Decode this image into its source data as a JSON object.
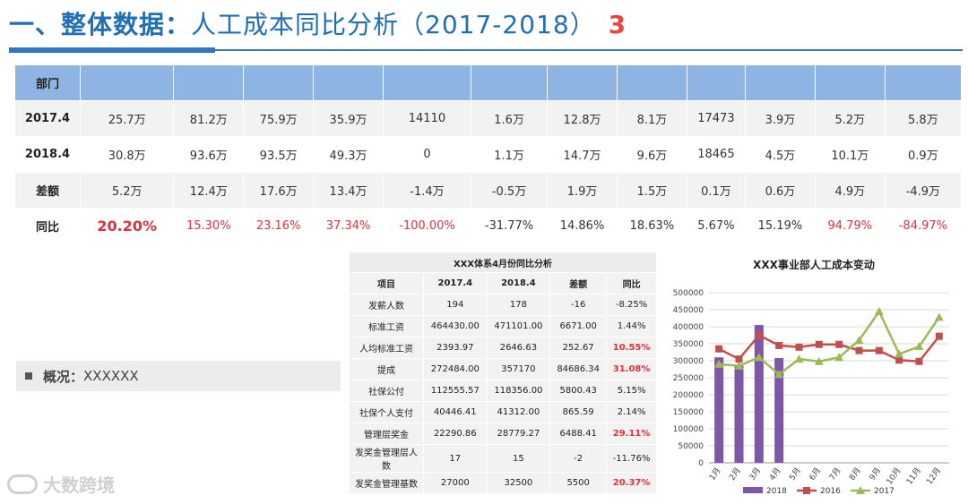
{
  "header": {
    "title_prefix": "一、整体数据：",
    "title_main": "人工成本同比分析（2017-2018）",
    "page_number": "3"
  },
  "main_table": {
    "header_label": "部门",
    "rows": [
      {
        "label": "2017.4",
        "values": [
          "25.7万",
          "81.2万",
          "75.9万",
          "35.9万",
          "14110",
          "1.6万",
          "12.8万",
          "8.1万",
          "17473",
          "3.9万",
          "5.2万",
          "5.8万"
        ]
      },
      {
        "label": "2018.4",
        "values": [
          "30.8万",
          "93.6万",
          "93.5万",
          "49.3万",
          "0",
          "1.1万",
          "14.7万",
          "9.6万",
          "18465",
          "4.5万",
          "10.1万",
          "0.9万"
        ]
      },
      {
        "label": "差额",
        "values": [
          "5.2万",
          "12.4万",
          "17.6万",
          "13.4万",
          "-1.4万",
          "-0.5万",
          "1.9万",
          "1.5万",
          "0.1万",
          "0.6万",
          "4.9万",
          "-4.9万"
        ]
      },
      {
        "label": "同比",
        "values": [
          "20.20%",
          "15.30%",
          "23.16%",
          "37.34%",
          "-100.00%",
          "-31.77%",
          "14.86%",
          "18.63%",
          "5.67%",
          "15.19%",
          "94.79%",
          "-84.97%"
        ]
      }
    ]
  },
  "overview": {
    "label": "概况：",
    "value": "XXXXXX"
  },
  "watermark": {
    "text": "大数跨境"
  },
  "sub_table": {
    "caption": "XXX体系4月份同比分析",
    "headers": [
      "项目",
      "2017.4",
      "2018.4",
      "差额",
      "同比"
    ],
    "rows": [
      [
        "发薪人数",
        "194",
        "178",
        "-16",
        "-8.25%"
      ],
      [
        "标准工资",
        "464430.00",
        "471101.00",
        "6671.00",
        "1.44%"
      ],
      [
        "人均标准工资",
        "2393.97",
        "2646.63",
        "252.67",
        "10.55%"
      ],
      [
        "提成",
        "272484.00",
        "357170",
        "84686.34",
        "31.08%"
      ],
      [
        "社保公付",
        "112555.57",
        "118356.00",
        "5800.43",
        "5.15%"
      ],
      [
        "社保个人支付",
        "40446.41",
        "41312.00",
        "865.59",
        "2.14%"
      ],
      [
        "管理层奖金",
        "22290.86",
        "28779.27",
        "6488.41",
        "29.11%"
      ],
      [
        "发奖金管理层人数",
        "17",
        "15",
        "-2",
        "-11.76%"
      ],
      [
        "发奖金管理基数",
        "27000",
        "32500",
        "5500",
        "20.37%"
      ]
    ],
    "red_rows": [
      2,
      3,
      6,
      8
    ]
  },
  "chart_data": {
    "type": "bar",
    "title": "XXX事业部人工成本变动",
    "categories": [
      "1月",
      "2月",
      "3月",
      "4月",
      "5月",
      "6月",
      "7月",
      "8月",
      "9月",
      "10月",
      "11月",
      "12月"
    ],
    "ylim": [
      0,
      500000
    ],
    "yticks": [
      0,
      50000,
      100000,
      150000,
      200000,
      250000,
      300000,
      350000,
      400000,
      450000,
      500000
    ],
    "series": [
      {
        "name": "2018",
        "kind": "bar",
        "color": "#7e57a6",
        "values": [
          310000,
          285000,
          405000,
          308000,
          null,
          null,
          null,
          null,
          null,
          null,
          null,
          null
        ]
      },
      {
        "name": "2016",
        "kind": "line",
        "color": "#c0504d",
        "values": [
          335000,
          305000,
          375000,
          345000,
          340000,
          348000,
          348000,
          330000,
          330000,
          302000,
          298000,
          372000
        ]
      },
      {
        "name": "2017",
        "kind": "line",
        "color": "#9bbb59",
        "values": [
          290000,
          285000,
          310000,
          260000,
          305000,
          298000,
          310000,
          360000,
          445000,
          320000,
          342000,
          428000
        ]
      }
    ],
    "legend": "bottom"
  }
}
